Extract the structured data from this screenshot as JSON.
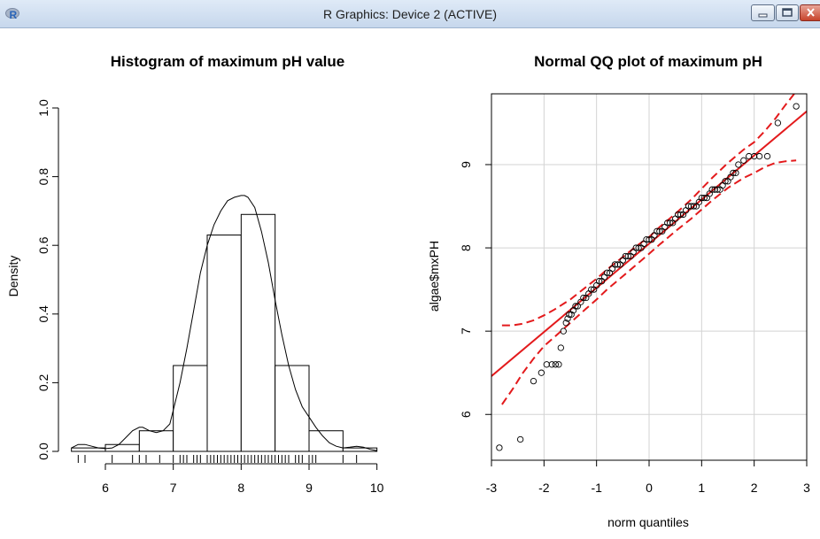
{
  "window": {
    "title": "R Graphics: Device 2 (ACTIVE)",
    "icon": "r-logo-icon",
    "buttons": [
      "minimize-icon",
      "maximize-icon",
      "close-icon"
    ]
  },
  "chart_data": [
    {
      "type": "histogram",
      "title": "Histogram of maximum pH value",
      "xlabel": "",
      "ylabel": "Density",
      "xlim": [
        5.4,
        10.2
      ],
      "ylim": [
        0,
        1.0
      ],
      "xticks": [
        6,
        7,
        8,
        9,
        10
      ],
      "yticks": [
        0.0,
        0.2,
        0.4,
        0.6,
        0.8,
        1.0
      ],
      "bins": [
        {
          "x0": 5.5,
          "x1": 6.0,
          "density": 0.01
        },
        {
          "x0": 6.0,
          "x1": 6.5,
          "density": 0.02
        },
        {
          "x0": 6.5,
          "x1": 7.0,
          "density": 0.06
        },
        {
          "x0": 7.0,
          "x1": 7.5,
          "density": 0.25
        },
        {
          "x0": 7.5,
          "x1": 8.0,
          "density": 0.63
        },
        {
          "x0": 8.0,
          "x1": 8.5,
          "density": 0.69
        },
        {
          "x0": 8.5,
          "x1": 9.0,
          "density": 0.25
        },
        {
          "x0": 9.0,
          "x1": 9.5,
          "density": 0.06
        },
        {
          "x0": 9.5,
          "x1": 10.0,
          "density": 0.01
        }
      ],
      "density_curve": {
        "x": [
          5.5,
          5.6,
          5.7,
          5.8,
          5.9,
          6.0,
          6.1,
          6.2,
          6.3,
          6.4,
          6.5,
          6.55,
          6.65,
          6.75,
          6.85,
          6.95,
          7.0,
          7.1,
          7.2,
          7.3,
          7.4,
          7.5,
          7.6,
          7.7,
          7.8,
          7.9,
          8.0,
          8.05,
          8.1,
          8.2,
          8.3,
          8.4,
          8.5,
          8.6,
          8.7,
          8.8,
          8.9,
          9.0,
          9.1,
          9.2,
          9.3,
          9.4,
          9.5,
          9.6,
          9.7,
          9.8,
          9.9,
          10.0
        ],
        "y": [
          0.01,
          0.02,
          0.02,
          0.015,
          0.01,
          0.008,
          0.01,
          0.02,
          0.04,
          0.06,
          0.07,
          0.07,
          0.06,
          0.055,
          0.06,
          0.08,
          0.12,
          0.2,
          0.3,
          0.41,
          0.52,
          0.6,
          0.66,
          0.7,
          0.73,
          0.74,
          0.745,
          0.745,
          0.74,
          0.71,
          0.64,
          0.55,
          0.44,
          0.34,
          0.25,
          0.18,
          0.13,
          0.1,
          0.07,
          0.045,
          0.025,
          0.015,
          0.01,
          0.012,
          0.015,
          0.012,
          0.006,
          0.002
        ]
      },
      "rug": [
        5.6,
        5.7,
        6.1,
        6.4,
        6.5,
        6.6,
        6.8,
        7.0,
        7.1,
        7.15,
        7.2,
        7.3,
        7.35,
        7.4,
        7.5,
        7.55,
        7.6,
        7.65,
        7.7,
        7.75,
        7.8,
        7.85,
        7.9,
        7.95,
        8.0,
        8.05,
        8.1,
        8.15,
        8.2,
        8.25,
        8.3,
        8.35,
        8.4,
        8.45,
        8.5,
        8.55,
        8.6,
        8.65,
        8.7,
        8.8,
        8.85,
        8.9,
        9.0,
        9.05,
        9.1,
        9.5,
        9.7
      ]
    },
    {
      "type": "scatter",
      "title": "Normal QQ plot of maximum pH",
      "xlabel": "norm quantiles",
      "ylabel": "algae$mxPH",
      "xlim": [
        -3,
        3
      ],
      "ylim": [
        5.45,
        9.85
      ],
      "xticks": [
        -3,
        -2,
        -1,
        0,
        1,
        2,
        3
      ],
      "yticks": [
        6,
        7,
        8,
        9
      ],
      "grid": true,
      "reference_line": {
        "intercept": 8.05,
        "slope": 0.53,
        "color": "#e31a1c"
      },
      "envelope_upper": {
        "x": [
          -2.8,
          -2.6,
          -2.4,
          -2.2,
          -2.0,
          -1.8,
          -1.5,
          -1.2,
          -1.0,
          -0.8,
          -0.5,
          -0.2,
          0.0,
          0.2,
          0.5,
          0.8,
          1.0,
          1.2,
          1.5,
          1.8,
          2.0,
          2.2,
          2.4,
          2.6,
          2.8
        ],
        "y": [
          7.07,
          7.07,
          7.09,
          7.13,
          7.19,
          7.26,
          7.38,
          7.53,
          7.63,
          7.74,
          7.89,
          8.04,
          8.13,
          8.25,
          8.41,
          8.58,
          8.71,
          8.84,
          9.02,
          9.18,
          9.27,
          9.4,
          9.55,
          9.72,
          9.88
        ]
      },
      "envelope_lower": {
        "x": [
          -2.8,
          -2.6,
          -2.4,
          -2.2,
          -2.0,
          -1.8,
          -1.5,
          -1.2,
          -1.0,
          -0.8,
          -0.5,
          -0.2,
          0.0,
          0.2,
          0.5,
          0.8,
          1.0,
          1.2,
          1.5,
          1.8,
          2.0,
          2.2,
          2.4,
          2.6,
          2.8
        ],
        "y": [
          6.12,
          6.3,
          6.5,
          6.67,
          6.82,
          6.93,
          7.1,
          7.27,
          7.38,
          7.5,
          7.66,
          7.82,
          7.93,
          8.04,
          8.2,
          8.35,
          8.46,
          8.57,
          8.72,
          8.84,
          8.9,
          8.97,
          9.02,
          9.04,
          9.05
        ]
      },
      "points": {
        "x": [
          -2.85,
          -2.45,
          -2.2,
          -2.05,
          -1.95,
          -1.85,
          -1.78,
          -1.72,
          -1.68,
          -1.63,
          -1.58,
          -1.55,
          -1.52,
          -1.48,
          -1.44,
          -1.4,
          -1.36,
          -1.3,
          -1.25,
          -1.2,
          -1.15,
          -1.1,
          -1.05,
          -1.0,
          -0.95,
          -0.9,
          -0.85,
          -0.8,
          -0.75,
          -0.7,
          -0.65,
          -0.6,
          -0.55,
          -0.5,
          -0.45,
          -0.4,
          -0.35,
          -0.3,
          -0.25,
          -0.2,
          -0.15,
          -0.1,
          -0.05,
          0.0,
          0.05,
          0.1,
          0.15,
          0.2,
          0.25,
          0.3,
          0.35,
          0.4,
          0.45,
          0.5,
          0.55,
          0.6,
          0.65,
          0.7,
          0.75,
          0.8,
          0.85,
          0.9,
          0.95,
          1.0,
          1.05,
          1.1,
          1.15,
          1.2,
          1.25,
          1.3,
          1.35,
          1.4,
          1.45,
          1.5,
          1.55,
          1.6,
          1.65,
          1.7,
          1.8,
          1.9,
          2.0,
          2.1,
          2.25,
          2.45,
          2.8
        ],
        "y": [
          5.6,
          5.7,
          6.4,
          6.5,
          6.6,
          6.6,
          6.6,
          6.6,
          6.8,
          7.0,
          7.1,
          7.15,
          7.2,
          7.2,
          7.25,
          7.3,
          7.3,
          7.35,
          7.4,
          7.4,
          7.45,
          7.5,
          7.5,
          7.55,
          7.6,
          7.6,
          7.65,
          7.7,
          7.7,
          7.75,
          7.8,
          7.8,
          7.8,
          7.85,
          7.9,
          7.9,
          7.9,
          7.95,
          8.0,
          8.0,
          8.0,
          8.05,
          8.1,
          8.1,
          8.1,
          8.15,
          8.2,
          8.2,
          8.2,
          8.25,
          8.3,
          8.3,
          8.3,
          8.35,
          8.4,
          8.4,
          8.4,
          8.45,
          8.5,
          8.5,
          8.5,
          8.5,
          8.55,
          8.6,
          8.6,
          8.6,
          8.65,
          8.7,
          8.7,
          8.7,
          8.7,
          8.75,
          8.8,
          8.8,
          8.85,
          8.9,
          8.9,
          9.0,
          9.05,
          9.1,
          9.1,
          9.1,
          9.1,
          9.5,
          9.7
        ]
      }
    }
  ]
}
